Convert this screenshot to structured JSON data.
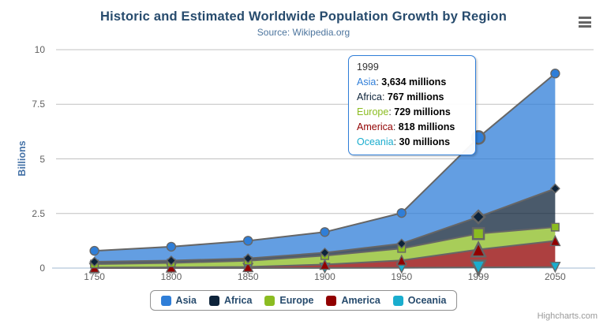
{
  "chart_data": {
    "type": "area",
    "stacking": "normal",
    "title": "Historic and Estimated Worldwide Population Growth by Region",
    "subtitle": "Source: Wikipedia.org",
    "categories": [
      "1750",
      "1800",
      "1850",
      "1900",
      "1950",
      "1999",
      "2050"
    ],
    "xlabel": "",
    "ylabel": "Billions",
    "ylim": [
      0,
      10
    ],
    "yticks": [
      0,
      2.5,
      5,
      7.5,
      10
    ],
    "grid": true,
    "legend_position": "bottom-center",
    "value_unit": "millions",
    "series": [
      {
        "name": "Asia",
        "color": "#2f7ed8",
        "marker": "circle",
        "values": [
          502,
          635,
          809,
          947,
          1402,
          3634,
          5268
        ]
      },
      {
        "name": "Africa",
        "color": "#0d233a",
        "marker": "diamond",
        "values": [
          106,
          107,
          111,
          133,
          221,
          767,
          1766
        ]
      },
      {
        "name": "Europe",
        "color": "#8bbc21",
        "marker": "square",
        "values": [
          163,
          203,
          276,
          408,
          547,
          729,
          628
        ]
      },
      {
        "name": "America",
        "color": "#910000",
        "marker": "triangle",
        "values": [
          18,
          31,
          54,
          156,
          339,
          818,
          1201
        ]
      },
      {
        "name": "Oceania",
        "color": "#1aadce",
        "marker": "triangle-down",
        "values": [
          2,
          2,
          2,
          6,
          13,
          30,
          46
        ]
      }
    ],
    "colors": {
      "title": "#274b6d",
      "subtitle": "#4d759e",
      "gridline": "#C0C0C0",
      "axis_line": "#C0D0E0",
      "series_line": "#666666",
      "tick_label": "#606060"
    }
  },
  "tooltip": {
    "header": "1999",
    "border_color": "#2f7ed8",
    "rows": [
      {
        "name": "Asia",
        "color": "#2f7ed8",
        "value": "3,634 millions"
      },
      {
        "name": "Africa",
        "color": "#0d233a",
        "value": "767 millions"
      },
      {
        "name": "Europe",
        "color": "#8bbc21",
        "value": "729 millions"
      },
      {
        "name": "America",
        "color": "#910000",
        "value": "818 millions"
      },
      {
        "name": "Oceania",
        "color": "#1aadce",
        "value": "30 millions"
      }
    ]
  },
  "credits": "Highcharts.com",
  "menu_icon": "hamburger-icon"
}
